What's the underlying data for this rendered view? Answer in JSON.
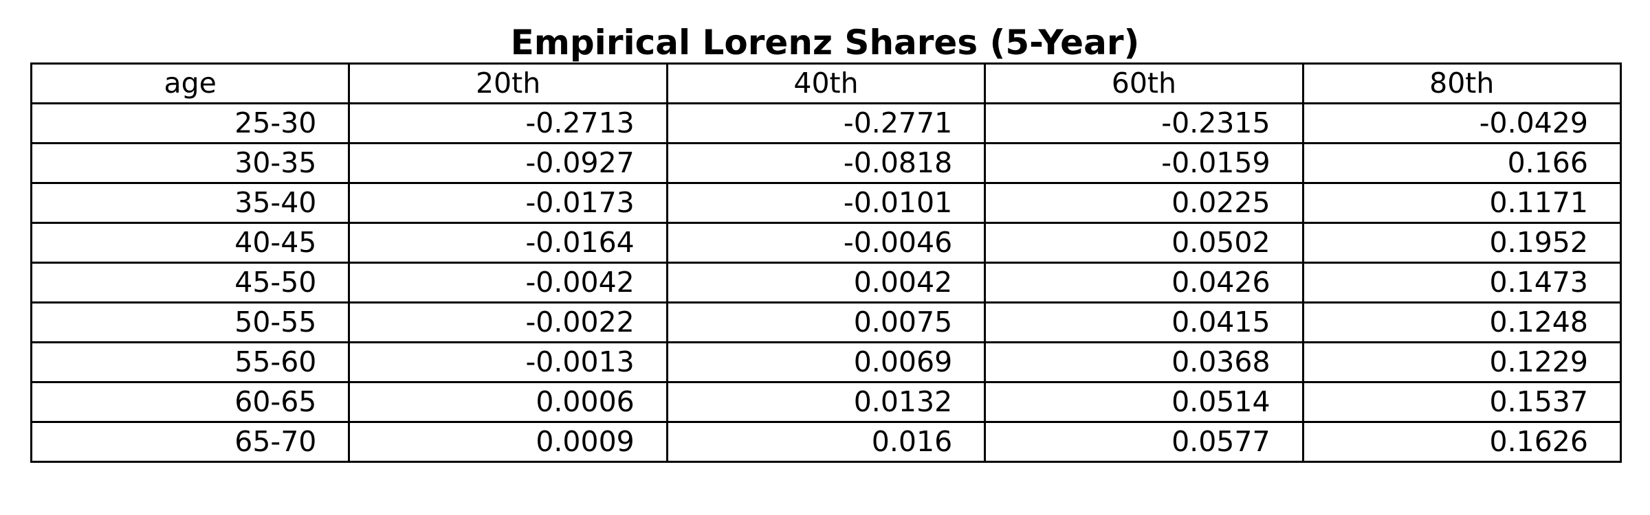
{
  "chart_data": {
    "type": "table",
    "title": "Empirical Lorenz Shares (5-Year)",
    "columns": [
      "age",
      "20th",
      "40th",
      "60th",
      "80th"
    ],
    "rows": [
      [
        "25-30",
        "-0.2713",
        "-0.2771",
        "-0.2315",
        "-0.0429"
      ],
      [
        "30-35",
        "-0.0927",
        "-0.0818",
        "-0.0159",
        "0.166"
      ],
      [
        "35-40",
        "-0.0173",
        "-0.0101",
        "0.0225",
        "0.1171"
      ],
      [
        "40-45",
        "-0.0164",
        "-0.0046",
        "0.0502",
        "0.1952"
      ],
      [
        "45-50",
        "-0.0042",
        "0.0042",
        "0.0426",
        "0.1473"
      ],
      [
        "50-55",
        "-0.0022",
        "0.0075",
        "0.0415",
        "0.1248"
      ],
      [
        "55-60",
        "-0.0013",
        "0.0069",
        "0.0368",
        "0.1229"
      ],
      [
        "60-65",
        "0.0006",
        "0.0132",
        "0.0514",
        "0.1537"
      ],
      [
        "65-70",
        "0.0009",
        "0.016",
        "0.0577",
        "0.1626"
      ]
    ]
  }
}
